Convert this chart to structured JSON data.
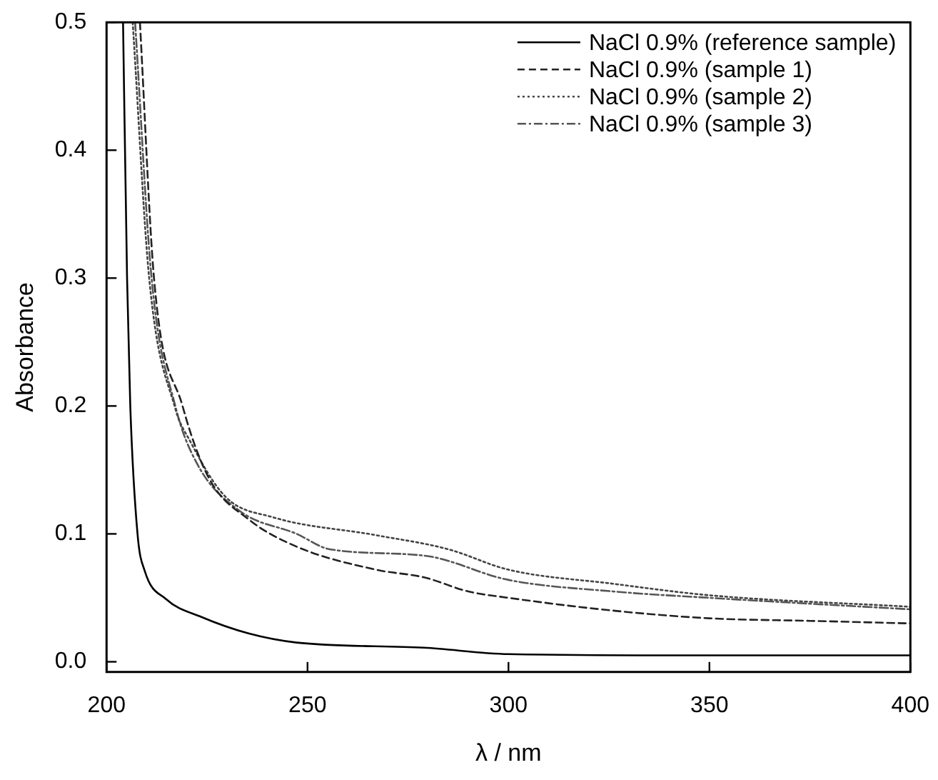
{
  "chart_data": {
    "type": "line",
    "xlabel": "λ / nm",
    "ylabel": "Absorbance",
    "xlim": [
      200,
      400
    ],
    "xticks": [
      200,
      250,
      300,
      350,
      400
    ],
    "ylim": [
      -0.008,
      0.5
    ],
    "yticks": [
      {
        "value": 0,
        "label": "0.0"
      },
      0.1,
      0.2,
      0.3,
      0.4,
      0.5
    ],
    "grid": false,
    "legend": "top right",
    "marker": "none",
    "series": [
      {
        "name": "NaCl 0.9% (reference sample)",
        "color": "#000000",
        "line_style": "solid",
        "x": [
          204.1,
          205.1,
          205.9,
          207.7,
          209.5,
          214.8,
          223.6,
          235.5,
          247.3,
          279,
          300,
          350,
          400
        ],
        "values": [
          0.5,
          0.3,
          0.2,
          0.1,
          0.071,
          0.049,
          0.035,
          0.022,
          0.015,
          0.011,
          0.006,
          0.005,
          0.005
        ]
      },
      {
        "name": "NaCl 0.9% (sample 1)",
        "color": "#222222",
        "line_style": "dashed",
        "x": [
          208.3,
          211.8,
          218.9,
          225.4,
          235.5,
          247.3,
          267,
          279,
          290,
          300,
          326,
          350,
          375,
          400
        ],
        "values": [
          0.5,
          0.3,
          0.2,
          0.144,
          0.111,
          0.09,
          0.072,
          0.066,
          0.055,
          0.05,
          0.04,
          0.034,
          0.032,
          0.03
        ]
      },
      {
        "name": "NaCl 0.9% (sample 2)",
        "color": "#444444",
        "line_style": "dotted",
        "x": [
          206.5,
          210.6,
          217.1,
          220.7,
          229.6,
          241.4,
          267,
          285,
          300,
          326,
          350,
          400
        ],
        "values": [
          0.5,
          0.3,
          0.198,
          0.173,
          0.129,
          0.113,
          0.099,
          0.088,
          0.072,
          0.061,
          0.052,
          0.043
        ]
      },
      {
        "name": "NaCl 0.9% (sample 3)",
        "color": "#555555",
        "line_style": "dashdot",
        "x": [
          207.1,
          211.2,
          217.1,
          222.5,
          233.1,
          247.3,
          255.5,
          279,
          300,
          326,
          350,
          400
        ],
        "values": [
          0.5,
          0.3,
          0.2,
          0.155,
          0.118,
          0.1,
          0.088,
          0.083,
          0.064,
          0.055,
          0.05,
          0.041
        ]
      }
    ]
  }
}
